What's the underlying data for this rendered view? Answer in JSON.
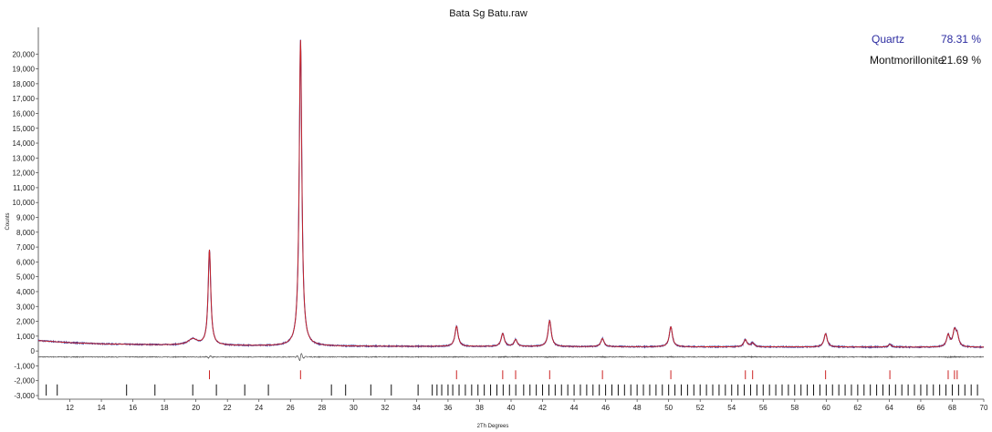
{
  "chart_data": {
    "type": "line",
    "title": "Bata Sg Batu.raw",
    "xlabel": "2Th Degrees",
    "ylabel": "Counts",
    "xlim": [
      10,
      70
    ],
    "ylim": [
      -3000,
      21000
    ],
    "x_ticks": [
      12,
      14,
      16,
      18,
      20,
      22,
      24,
      26,
      28,
      30,
      32,
      34,
      36,
      38,
      40,
      42,
      44,
      46,
      48,
      50,
      52,
      54,
      56,
      58,
      60,
      62,
      64,
      66,
      68,
      70
    ],
    "y_ticks": [
      -3000,
      -2000,
      -1000,
      0,
      1000,
      2000,
      3000,
      4000,
      5000,
      6000,
      7000,
      8000,
      9000,
      10000,
      11000,
      12000,
      13000,
      14000,
      15000,
      16000,
      17000,
      18000,
      19000,
      20000
    ],
    "y_tick_labels": [
      "-3,000",
      "-2,000",
      "-1,000",
      "0",
      "1,000",
      "2,000",
      "3,000",
      "4,000",
      "5,000",
      "6,000",
      "7,000",
      "8,000",
      "9,000",
      "10,000",
      "11,000",
      "12,000",
      "13,000",
      "14,000",
      "15,000",
      "16,000",
      "17,000",
      "18,000",
      "19,000",
      "20,000"
    ],
    "legend": [
      {
        "name": "Quartz",
        "value": "78.31 %",
        "color": "#2b2ba0"
      },
      {
        "name": "Montmorillonite",
        "value": "21.69 %",
        "color": "#111111"
      }
    ],
    "colors": {
      "observed": "#3a3aa0",
      "calculated": "#cc2222",
      "difference": "#555555",
      "markers": "#111111"
    },
    "background": {
      "points": [
        [
          10,
          700
        ],
        [
          12,
          560
        ],
        [
          14,
          480
        ],
        [
          16,
          440
        ],
        [
          18,
          410
        ],
        [
          20,
          390
        ],
        [
          22,
          370
        ],
        [
          24,
          350
        ],
        [
          26,
          340
        ],
        [
          28,
          330
        ],
        [
          30,
          320
        ],
        [
          34,
          310
        ],
        [
          40,
          300
        ],
        [
          50,
          280
        ],
        [
          60,
          270
        ],
        [
          70,
          250
        ]
      ]
    },
    "peaks": [
      {
        "x": 19.8,
        "height": 400,
        "width": 0.35
      },
      {
        "x": 20.86,
        "height": 6400,
        "width": 0.1
      },
      {
        "x": 26.64,
        "height": 20600,
        "width": 0.1
      },
      {
        "x": 36.54,
        "height": 1350,
        "width": 0.12
      },
      {
        "x": 39.47,
        "height": 870,
        "width": 0.12
      },
      {
        "x": 40.29,
        "height": 450,
        "width": 0.12
      },
      {
        "x": 42.45,
        "height": 1750,
        "width": 0.12
      },
      {
        "x": 45.8,
        "height": 550,
        "width": 0.12
      },
      {
        "x": 50.14,
        "height": 1350,
        "width": 0.12
      },
      {
        "x": 54.87,
        "height": 480,
        "width": 0.12
      },
      {
        "x": 55.33,
        "height": 260,
        "width": 0.12
      },
      {
        "x": 59.96,
        "height": 900,
        "width": 0.12
      },
      {
        "x": 64.04,
        "height": 180,
        "width": 0.12
      },
      {
        "x": 67.74,
        "height": 800,
        "width": 0.12
      },
      {
        "x": 68.14,
        "height": 1000,
        "width": 0.12
      },
      {
        "x": 68.31,
        "height": 700,
        "width": 0.12
      }
    ],
    "difference_offset": -400,
    "quartz_marks": [
      20.86,
      26.64,
      36.54,
      39.47,
      40.29,
      42.45,
      45.8,
      50.14,
      54.87,
      55.33,
      59.96,
      64.04,
      67.74,
      68.14,
      68.31
    ],
    "montmorillonite_marks": [
      10.5,
      11.2,
      15.6,
      17.4,
      19.8,
      21.3,
      23.1,
      24.6,
      28.6,
      29.5,
      31.1,
      32.4,
      34.1,
      35.0,
      35.3,
      35.6,
      36.0,
      36.3,
      36.7,
      37.1,
      37.5,
      37.9,
      38.3,
      38.7,
      39.1,
      39.5,
      39.9,
      40.3,
      40.8,
      41.2,
      41.6,
      42.0,
      42.4,
      42.8,
      43.2,
      43.6,
      44.0,
      44.4,
      44.8,
      45.2,
      45.6,
      46.0,
      46.4,
      46.8,
      47.2,
      47.6,
      48.0,
      48.4,
      48.8,
      49.2,
      49.6,
      50.0,
      50.4,
      50.8,
      51.2,
      51.6,
      52.0,
      52.4,
      52.8,
      53.2,
      53.6,
      54.0,
      54.4,
      54.8,
      55.2,
      55.6,
      56.0,
      56.4,
      56.8,
      57.2,
      57.6,
      58.0,
      58.4,
      58.8,
      59.2,
      59.6,
      60.0,
      60.4,
      60.8,
      61.2,
      61.6,
      62.0,
      62.4,
      62.8,
      63.2,
      63.6,
      64.0,
      64.4,
      64.8,
      65.2,
      65.6,
      66.0,
      66.4,
      66.8,
      67.2,
      67.6,
      68.0,
      68.4,
      68.8,
      69.2,
      69.6
    ]
  }
}
